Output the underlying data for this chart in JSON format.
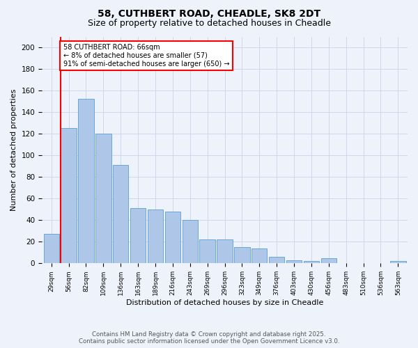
{
  "title1": "58, CUTHBERT ROAD, CHEADLE, SK8 2DT",
  "title2": "Size of property relative to detached houses in Cheadle",
  "xlabel": "Distribution of detached houses by size in Cheadle",
  "ylabel": "Number of detached properties",
  "bar_labels": [
    "29sqm",
    "56sqm",
    "82sqm",
    "109sqm",
    "136sqm",
    "163sqm",
    "189sqm",
    "216sqm",
    "243sqm",
    "269sqm",
    "296sqm",
    "323sqm",
    "349sqm",
    "376sqm",
    "403sqm",
    "430sqm",
    "456sqm",
    "483sqm",
    "510sqm",
    "536sqm",
    "563sqm"
  ],
  "bar_values": [
    27,
    125,
    152,
    120,
    91,
    51,
    50,
    48,
    40,
    22,
    22,
    15,
    14,
    6,
    3,
    2,
    5,
    0,
    0,
    0,
    2
  ],
  "bar_color": "#aec6e8",
  "bar_edge_color": "#5a9fd4",
  "annotation_text": "58 CUTHBERT ROAD: 66sqm\n← 8% of detached houses are smaller (57)\n91% of semi-detached houses are larger (650) →",
  "vline_color": "red",
  "annotation_box_color": "white",
  "annotation_box_edge": "red",
  "ylim": [
    0,
    210
  ],
  "yticks": [
    0,
    20,
    40,
    60,
    80,
    100,
    120,
    140,
    160,
    180,
    200
  ],
  "footer_line1": "Contains HM Land Registry data © Crown copyright and database right 2025.",
  "footer_line2": "Contains public sector information licensed under the Open Government Licence v3.0.",
  "bg_color": "#eef2fb",
  "grid_color": "#c8d4e8"
}
